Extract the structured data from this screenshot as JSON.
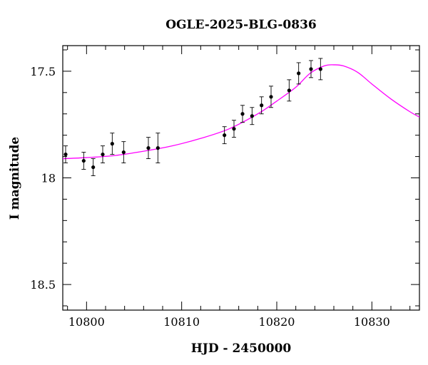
{
  "chart_data": {
    "type": "scatter",
    "title": "OGLE-2025-BLG-0836",
    "xlabel": "HJD - 2450000",
    "ylabel": "I magnitude",
    "xlim": [
      10797.5,
      10835
    ],
    "ylim": [
      18.62,
      17.38
    ],
    "y_inverted": true,
    "grid": false,
    "legend": "none",
    "x_ticks": [
      10800,
      10810,
      10820,
      10830
    ],
    "x_tick_labels": [
      "10800",
      "10810",
      "10820",
      "10830"
    ],
    "y_ticks": [
      17.5,
      18,
      18.5
    ],
    "y_tick_labels": [
      "17.5",
      "18",
      "18.5"
    ],
    "x_minor_step": 2,
    "y_minor_step": 0.1,
    "colors": {
      "points": "#000000",
      "model": "#ff00ff",
      "axes": "#000000"
    },
    "series": [
      {
        "kind": "points-with-errorbars",
        "x": [
          10797.8,
          10799.7,
          10800.7,
          10801.7,
          10802.7,
          10803.9,
          10806.5,
          10807.5,
          10814.5,
          10815.5,
          10816.4,
          10817.4,
          10818.4,
          10819.4,
          10821.3,
          10822.3,
          10823.6,
          10824.6
        ],
        "y": [
          17.89,
          17.92,
          17.95,
          17.89,
          17.84,
          17.88,
          17.86,
          17.86,
          17.8,
          17.77,
          17.7,
          17.71,
          17.66,
          17.62,
          17.59,
          17.51,
          17.49,
          17.49
        ],
        "yerr": [
          0.04,
          0.04,
          0.04,
          0.04,
          0.05,
          0.05,
          0.05,
          0.07,
          0.04,
          0.04,
          0.04,
          0.04,
          0.04,
          0.05,
          0.05,
          0.05,
          0.04,
          0.05
        ]
      },
      {
        "kind": "model-curve",
        "x": [
          10797.5,
          10800,
          10803,
          10806,
          10809,
          10812,
          10815,
          10818,
          10820,
          10822,
          10823.5,
          10825,
          10826,
          10827,
          10828.5,
          10830,
          10832,
          10834,
          10835
        ],
        "y": [
          17.91,
          17.905,
          17.895,
          17.875,
          17.85,
          17.815,
          17.77,
          17.7,
          17.64,
          17.575,
          17.51,
          17.475,
          17.47,
          17.475,
          17.505,
          17.56,
          17.63,
          17.69,
          17.715
        ]
      }
    ]
  }
}
